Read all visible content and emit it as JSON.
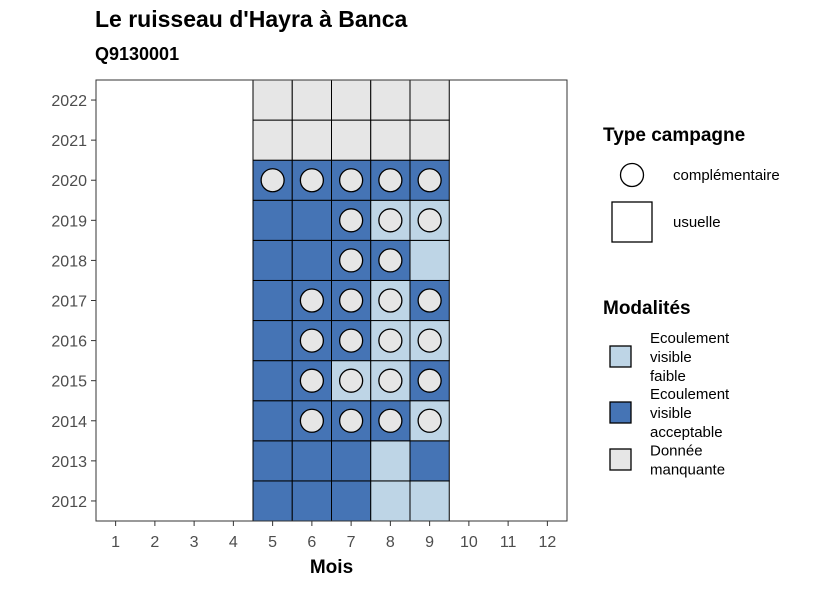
{
  "chart_data": {
    "type": "heatmap",
    "title": "Le ruisseau d'Hayra à Banca",
    "subtitle": "Q9130001",
    "xlabel": "Mois",
    "ylabel": "",
    "x_ticks": [
      "1",
      "2",
      "3",
      "4",
      "5",
      "6",
      "7",
      "8",
      "9",
      "10",
      "11",
      "12"
    ],
    "y_ticks": [
      "2012",
      "2013",
      "2014",
      "2015",
      "2016",
      "2017",
      "2018",
      "2019",
      "2020",
      "2021",
      "2022"
    ],
    "xlim": [
      0.5,
      12.5
    ],
    "ylim": [
      2011.5,
      2022.5
    ],
    "grid": false,
    "legend_position": "right",
    "modalites": [
      {
        "key": "faible",
        "label": [
          "Ecoulement",
          "visible",
          "faible"
        ],
        "color": "#bed5e6"
      },
      {
        "key": "acceptable",
        "label": [
          "Ecoulement",
          "visible",
          "acceptable"
        ],
        "color": "#4574b5"
      },
      {
        "key": "manquante",
        "label": [
          "Donnée",
          "manquante"
        ],
        "color": "#e6e6e6"
      }
    ],
    "type_campagne": {
      "title": "Type campagne",
      "entries": [
        {
          "key": "complementaire",
          "label": "complémentaire",
          "shape": "circle"
        },
        {
          "key": "usuelle",
          "label": "usuelle",
          "shape": "square"
        }
      ]
    },
    "legend_modalites_title": "Modalités",
    "cells": [
      {
        "year": 2012,
        "month": 5,
        "modalite": "acceptable",
        "campagne": "usuelle"
      },
      {
        "year": 2012,
        "month": 6,
        "modalite": "acceptable",
        "campagne": "usuelle"
      },
      {
        "year": 2012,
        "month": 7,
        "modalite": "acceptable",
        "campagne": "usuelle"
      },
      {
        "year": 2012,
        "month": 8,
        "modalite": "faible",
        "campagne": "usuelle"
      },
      {
        "year": 2012,
        "month": 9,
        "modalite": "faible",
        "campagne": "usuelle"
      },
      {
        "year": 2013,
        "month": 5,
        "modalite": "acceptable",
        "campagne": "usuelle"
      },
      {
        "year": 2013,
        "month": 6,
        "modalite": "acceptable",
        "campagne": "usuelle"
      },
      {
        "year": 2013,
        "month": 7,
        "modalite": "acceptable",
        "campagne": "usuelle"
      },
      {
        "year": 2013,
        "month": 8,
        "modalite": "faible",
        "campagne": "usuelle"
      },
      {
        "year": 2013,
        "month": 9,
        "modalite": "acceptable",
        "campagne": "usuelle"
      },
      {
        "year": 2014,
        "month": 5,
        "modalite": "acceptable",
        "campagne": "usuelle"
      },
      {
        "year": 2014,
        "month": 6,
        "modalite": "acceptable",
        "campagne": "complementaire"
      },
      {
        "year": 2014,
        "month": 7,
        "modalite": "acceptable",
        "campagne": "complementaire"
      },
      {
        "year": 2014,
        "month": 8,
        "modalite": "acceptable",
        "campagne": "complementaire"
      },
      {
        "year": 2014,
        "month": 9,
        "modalite": "faible",
        "campagne": "complementaire"
      },
      {
        "year": 2015,
        "month": 5,
        "modalite": "acceptable",
        "campagne": "usuelle"
      },
      {
        "year": 2015,
        "month": 6,
        "modalite": "acceptable",
        "campagne": "complementaire"
      },
      {
        "year": 2015,
        "month": 7,
        "modalite": "faible",
        "campagne": "complementaire"
      },
      {
        "year": 2015,
        "month": 8,
        "modalite": "faible",
        "campagne": "complementaire"
      },
      {
        "year": 2015,
        "month": 9,
        "modalite": "acceptable",
        "campagne": "complementaire"
      },
      {
        "year": 2016,
        "month": 5,
        "modalite": "acceptable",
        "campagne": "usuelle"
      },
      {
        "year": 2016,
        "month": 6,
        "modalite": "acceptable",
        "campagne": "complementaire"
      },
      {
        "year": 2016,
        "month": 7,
        "modalite": "acceptable",
        "campagne": "complementaire"
      },
      {
        "year": 2016,
        "month": 8,
        "modalite": "faible",
        "campagne": "complementaire"
      },
      {
        "year": 2016,
        "month": 9,
        "modalite": "faible",
        "campagne": "complementaire"
      },
      {
        "year": 2017,
        "month": 5,
        "modalite": "acceptable",
        "campagne": "usuelle"
      },
      {
        "year": 2017,
        "month": 6,
        "modalite": "acceptable",
        "campagne": "complementaire"
      },
      {
        "year": 2017,
        "month": 7,
        "modalite": "acceptable",
        "campagne": "complementaire"
      },
      {
        "year": 2017,
        "month": 8,
        "modalite": "faible",
        "campagne": "complementaire"
      },
      {
        "year": 2017,
        "month": 9,
        "modalite": "acceptable",
        "campagne": "complementaire"
      },
      {
        "year": 2018,
        "month": 5,
        "modalite": "acceptable",
        "campagne": "usuelle"
      },
      {
        "year": 2018,
        "month": 6,
        "modalite": "acceptable",
        "campagne": "usuelle"
      },
      {
        "year": 2018,
        "month": 7,
        "modalite": "acceptable",
        "campagne": "complementaire"
      },
      {
        "year": 2018,
        "month": 8,
        "modalite": "acceptable",
        "campagne": "complementaire"
      },
      {
        "year": 2018,
        "month": 9,
        "modalite": "faible",
        "campagne": "usuelle"
      },
      {
        "year": 2019,
        "month": 5,
        "modalite": "acceptable",
        "campagne": "usuelle"
      },
      {
        "year": 2019,
        "month": 6,
        "modalite": "acceptable",
        "campagne": "usuelle"
      },
      {
        "year": 2019,
        "month": 7,
        "modalite": "acceptable",
        "campagne": "complementaire"
      },
      {
        "year": 2019,
        "month": 8,
        "modalite": "faible",
        "campagne": "complementaire"
      },
      {
        "year": 2019,
        "month": 9,
        "modalite": "faible",
        "campagne": "complementaire"
      },
      {
        "year": 2020,
        "month": 5,
        "modalite": "acceptable",
        "campagne": "complementaire"
      },
      {
        "year": 2020,
        "month": 6,
        "modalite": "acceptable",
        "campagne": "complementaire"
      },
      {
        "year": 2020,
        "month": 7,
        "modalite": "acceptable",
        "campagne": "complementaire"
      },
      {
        "year": 2020,
        "month": 8,
        "modalite": "acceptable",
        "campagne": "complementaire"
      },
      {
        "year": 2020,
        "month": 9,
        "modalite": "acceptable",
        "campagne": "complementaire"
      },
      {
        "year": 2021,
        "month": 5,
        "modalite": "manquante",
        "campagne": "usuelle"
      },
      {
        "year": 2021,
        "month": 6,
        "modalite": "manquante",
        "campagne": "usuelle"
      },
      {
        "year": 2021,
        "month": 7,
        "modalite": "manquante",
        "campagne": "usuelle"
      },
      {
        "year": 2021,
        "month": 8,
        "modalite": "manquante",
        "campagne": "usuelle"
      },
      {
        "year": 2021,
        "month": 9,
        "modalite": "manquante",
        "campagne": "usuelle"
      },
      {
        "year": 2022,
        "month": 5,
        "modalite": "manquante",
        "campagne": "usuelle"
      },
      {
        "year": 2022,
        "month": 6,
        "modalite": "manquante",
        "campagne": "usuelle"
      },
      {
        "year": 2022,
        "month": 7,
        "modalite": "manquante",
        "campagne": "usuelle"
      },
      {
        "year": 2022,
        "month": 8,
        "modalite": "manquante",
        "campagne": "usuelle"
      },
      {
        "year": 2022,
        "month": 9,
        "modalite": "manquante",
        "campagne": "usuelle"
      }
    ],
    "marker_fill": "#e6e6e6"
  }
}
